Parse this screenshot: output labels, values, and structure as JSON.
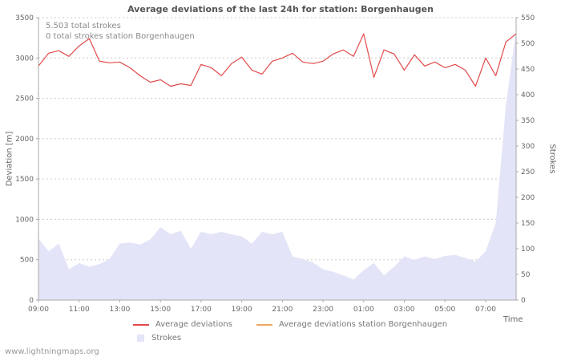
{
  "page": {
    "title": "Average deviations of the last 24h for station: Borgenhaugen",
    "footer": "www.lightningmaps.org"
  },
  "annotations": {
    "total_strokes": "5.503 total strokes",
    "station_strokes": "0 total strokes station Borgenhaugen"
  },
  "axes": {
    "left_label": "Deviation [m]",
    "right_label": "Strokes",
    "x_label": "Time"
  },
  "legend": [
    {
      "type": "line",
      "color": "#e14b4b",
      "label": "Average deviations"
    },
    {
      "type": "line",
      "color": "#eda75f",
      "label": "Average deviations station Borgenhaugen"
    },
    {
      "type": "area",
      "color": "#e4e4f8",
      "label": "Strokes"
    }
  ],
  "chart_data": {
    "type": "line",
    "title": "Average deviations of the last 24h for station: Borgenhaugen",
    "grid": "horizontal-dashed",
    "x_step_hours": 0.5,
    "x_span_hours": 23.5,
    "x_times": [
      "09:00",
      "09:30",
      "10:00",
      "10:30",
      "11:00",
      "11:30",
      "12:00",
      "12:30",
      "13:00",
      "13:30",
      "14:00",
      "14:30",
      "15:00",
      "15:30",
      "16:00",
      "16:30",
      "17:00",
      "17:30",
      "18:00",
      "18:30",
      "19:00",
      "19:30",
      "20:00",
      "20:30",
      "21:00",
      "21:30",
      "22:00",
      "22:30",
      "23:00",
      "23:30",
      "00:00",
      "00:30",
      "01:00",
      "01:30",
      "02:00",
      "02:30",
      "03:00",
      "03:30",
      "04:00",
      "04:30",
      "05:00",
      "05:30",
      "06:00",
      "06:30",
      "07:00",
      "07:30",
      "08:00",
      "08:30"
    ],
    "x_tick_labels": [
      "09:00",
      "11:00",
      "13:00",
      "15:00",
      "17:00",
      "19:00",
      "21:00",
      "23:00",
      "01:00",
      "03:00",
      "05:00",
      "07:00"
    ],
    "x_tick_hours": [
      0,
      2,
      4,
      6,
      8,
      10,
      12,
      14,
      16,
      18,
      20,
      22
    ],
    "left_axis": {
      "label": "Deviation [m]",
      "min": 0,
      "max": 3500,
      "tick_step": 500
    },
    "right_axis": {
      "label": "Strokes",
      "min": 0,
      "max": 550,
      "tick_step": 50
    },
    "series": [
      {
        "name": "Average deviations",
        "kind": "line",
        "axis": "left",
        "color": "#e14b4b",
        "values": [
          2900,
          3060,
          3090,
          3020,
          3150,
          3240,
          2960,
          2940,
          2950,
          2880,
          2780,
          2700,
          2730,
          2650,
          2680,
          2660,
          2920,
          2880,
          2780,
          2930,
          3010,
          2850,
          2800,
          2960,
          3000,
          3060,
          2950,
          2930,
          2960,
          3050,
          3100,
          3020,
          3300,
          2760,
          3100,
          3050,
          2850,
          3040,
          2900,
          2950,
          2880,
          2920,
          2850,
          2650,
          3000,
          2780,
          3200,
          3300
        ]
      },
      {
        "name": "Average deviations station Borgenhaugen",
        "kind": "line",
        "axis": "left",
        "color": "#eda75f",
        "values": []
      },
      {
        "name": "Strokes",
        "kind": "area",
        "axis": "right",
        "color": "#e4e4f8",
        "values": [
          120,
          95,
          110,
          60,
          72,
          65,
          70,
          80,
          110,
          112,
          108,
          118,
          142,
          128,
          135,
          100,
          133,
          128,
          133,
          128,
          124,
          110,
          133,
          128,
          133,
          85,
          80,
          73,
          60,
          55,
          48,
          40,
          58,
          72,
          48,
          65,
          85,
          78,
          85,
          80,
          86,
          88,
          82,
          75,
          95,
          150,
          380,
          525
        ]
      }
    ]
  }
}
